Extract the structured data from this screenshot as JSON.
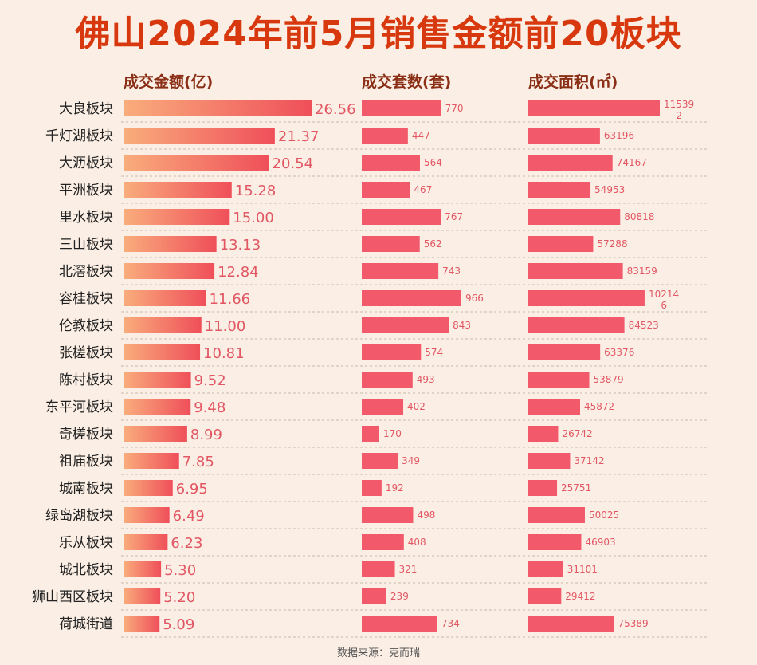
{
  "title": "佛山2024年前5月销售金额前20板块",
  "source": "数据来源：克而瑞",
  "colors": {
    "title": "#d8380e",
    "header": "#8a2e15",
    "amount_bar_start": "#f9ad7c",
    "amount_bar_end": "#ef4f5a",
    "bar": "#f2596b",
    "label": "#e25764"
  },
  "chart_data": {
    "type": "bar",
    "categories": [
      "大良板块",
      "千灯湖板块",
      "大沥板块",
      "平洲板块",
      "里水板块",
      "三山板块",
      "北滘板块",
      "容桂板块",
      "伦教板块",
      "张槎板块",
      "陈村板块",
      "东平河板块",
      "奇槎板块",
      "祖庙板块",
      "城南板块",
      "绿岛湖板块",
      "乐从板块",
      "城北板块",
      "狮山西区板块",
      "荷城街道"
    ],
    "series": [
      {
        "name": "成交金额(亿)",
        "values": [
          26.56,
          21.37,
          20.54,
          15.28,
          15.0,
          13.13,
          12.84,
          11.66,
          11.0,
          10.81,
          9.52,
          9.48,
          8.99,
          7.85,
          6.95,
          6.49,
          6.23,
          5.3,
          5.2,
          5.09
        ],
        "labels": [
          "26.56",
          "21.37",
          "20.54",
          "15.28",
          "15.00",
          "13.13",
          "12.84",
          "11.66",
          "11.00",
          "10.81",
          "9.52",
          "9.48",
          "8.99",
          "7.85",
          "6.95",
          "6.49",
          "6.23",
          "5.30",
          "5.20",
          "5.09"
        ]
      },
      {
        "name": "成交套数(套)",
        "values": [
          770,
          447,
          564,
          467,
          767,
          562,
          743,
          966,
          843,
          574,
          493,
          402,
          170,
          349,
          192,
          498,
          408,
          321,
          239,
          734
        ],
        "labels": [
          "770",
          "447",
          "564",
          "467",
          "767",
          "562",
          "743",
          "966",
          "843",
          "574",
          "493",
          "402",
          "170",
          "349",
          "192",
          "498",
          "408",
          "321",
          "239",
          "734"
        ]
      },
      {
        "name": "成交面积(㎡)",
        "values": [
          115392,
          63196,
          74167,
          54953,
          80818,
          57288,
          83159,
          102146,
          84523,
          63376,
          53879,
          45872,
          26742,
          37142,
          25751,
          50025,
          46903,
          31101,
          29412,
          75389
        ],
        "labels": [
          [
            "11539",
            "2"
          ],
          [
            "63196"
          ],
          [
            "74167"
          ],
          [
            "54953"
          ],
          [
            "80818"
          ],
          [
            "57288"
          ],
          [
            "83159"
          ],
          [
            "10214",
            "6"
          ],
          [
            "84523"
          ],
          [
            "63376"
          ],
          [
            "53879"
          ],
          [
            "45872"
          ],
          [
            "26742"
          ],
          [
            "37142"
          ],
          [
            "25751"
          ],
          [
            "50025"
          ],
          [
            "46903"
          ],
          [
            "31101"
          ],
          [
            "29412"
          ],
          [
            "75389"
          ]
        ]
      }
    ],
    "grid": false,
    "legend": "none"
  }
}
